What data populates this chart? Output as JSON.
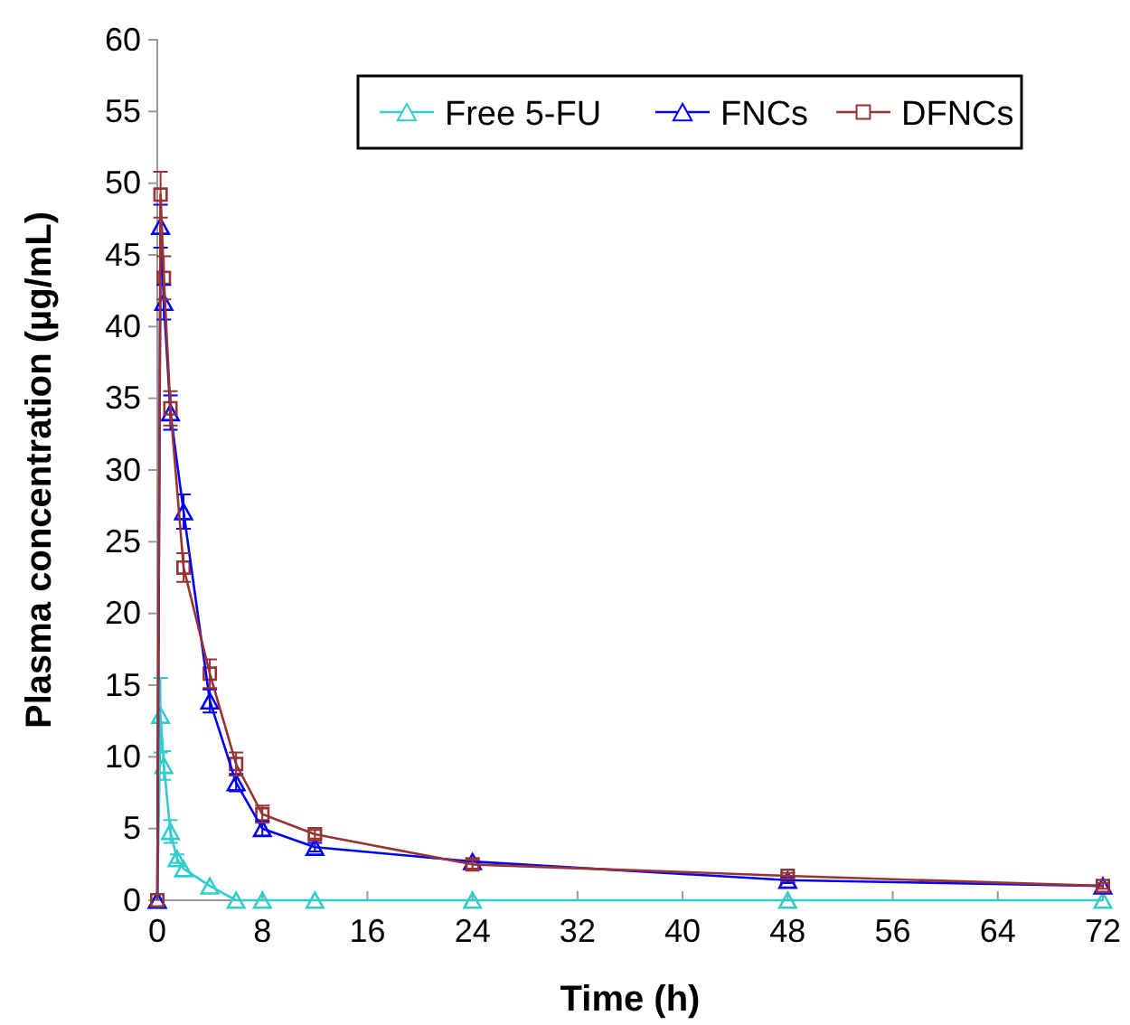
{
  "chart_data": {
    "type": "line",
    "xlabel": "Time (h)",
    "ylabel": "Plasma concentration (µg/mL)",
    "xlim": [
      0,
      72
    ],
    "xticks": [
      0,
      8,
      16,
      24,
      32,
      40,
      48,
      56,
      64,
      72
    ],
    "ylim": [
      0,
      60
    ],
    "yticks": [
      0,
      5,
      10,
      15,
      20,
      25,
      30,
      35,
      40,
      45,
      50,
      55,
      60
    ],
    "grid": false,
    "legend": "top right",
    "line_style": "solid",
    "series": [
      {
        "name": "Free 5-FU",
        "color": "#33cccc",
        "marker": "triangle",
        "x": [
          0,
          0.25,
          0.5,
          1,
          1.5,
          2,
          4,
          6,
          8,
          12,
          24,
          48,
          72
        ],
        "values": [
          0,
          12.9,
          9.4,
          4.8,
          2.9,
          2.2,
          1.0,
          0,
          0,
          0,
          0,
          0,
          0
        ],
        "errors": [
          null,
          2.6,
          1.0,
          0.8,
          0.3,
          null,
          null,
          null,
          null,
          null,
          null,
          null,
          null
        ]
      },
      {
        "name": "FNCs",
        "color": "#0000ff",
        "marker": "triangle",
        "x": [
          0,
          0.25,
          0.5,
          1,
          2,
          4,
          6,
          8,
          12,
          24,
          48,
          72
        ],
        "values": [
          0,
          47.0,
          41.7,
          34.0,
          27.1,
          13.9,
          8.2,
          5.0,
          3.7,
          2.7,
          1.4,
          1.0
        ],
        "errors": [
          null,
          1.5,
          1.2,
          1.2,
          1.2,
          0.8,
          0.6,
          0.5,
          0.3,
          null,
          0.2,
          null
        ]
      },
      {
        "name": "DFNCs",
        "color": "#993333",
        "marker": "square",
        "x": [
          0,
          0.25,
          0.5,
          1,
          2,
          4,
          6,
          8,
          12,
          24,
          48,
          72
        ],
        "values": [
          0,
          49.2,
          43.4,
          34.3,
          23.2,
          15.8,
          9.5,
          6.0,
          4.6,
          2.5,
          1.7,
          1.0
        ],
        "errors": [
          null,
          1.6,
          1.5,
          1.2,
          1.0,
          1.0,
          0.8,
          0.6,
          0.3,
          0.3,
          0.2,
          0.2
        ]
      }
    ]
  }
}
